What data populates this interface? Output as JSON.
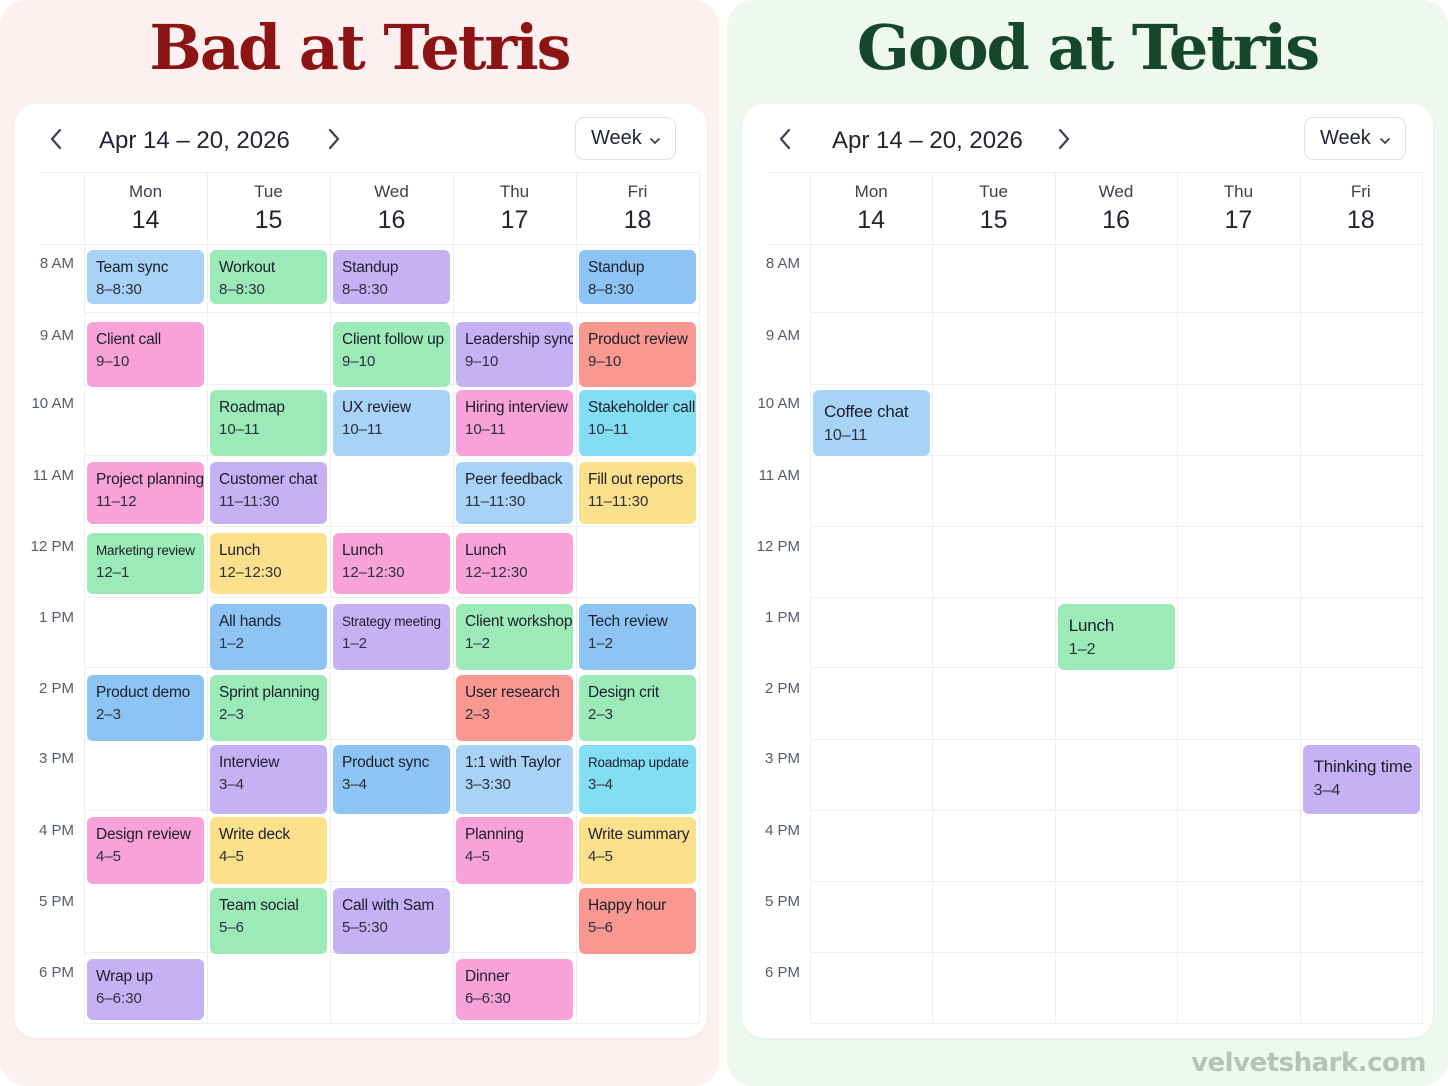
{
  "colors": {
    "blue": "#a9d3f6",
    "green": "#9ceab8",
    "purple": "#c7b1f5",
    "pink": "#f8a2d9",
    "red": "#f99791",
    "yellow": "#fce08b",
    "cyan": "#84def3",
    "sky": "#8dc4f3",
    "bad_title": "#8d1414",
    "good_title": "#16472a"
  },
  "time_labels": [
    "8 AM",
    "9 AM",
    "10 AM",
    "11 AM",
    "12 PM",
    "1 PM",
    "2 PM",
    "3 PM",
    "4 PM",
    "5 PM",
    "6 PM"
  ],
  "panels": {
    "bad": {
      "title": "Bad at Tetris",
      "date_range": "Apr 14 – 20, 2026",
      "view_label": "Week",
      "prev_icon": "chevron-left-icon",
      "next_icon": "chevron-right-icon",
      "days": [
        {
          "name": "Mon",
          "num": "14"
        },
        {
          "name": "Tue",
          "num": "15"
        },
        {
          "name": "Wed",
          "num": "16"
        },
        {
          "name": "Thu",
          "num": "17"
        },
        {
          "name": "Fri",
          "num": "18"
        }
      ],
      "events": [
        {
          "title": "Team sync",
          "time": "8–8:30",
          "day": 0,
          "slot": 0,
          "color": "blue"
        },
        {
          "title": "Workout",
          "time": "8–8:30",
          "day": 1,
          "slot": 0,
          "color": "green"
        },
        {
          "title": "Standup",
          "time": "8–8:30",
          "day": 2,
          "slot": 0,
          "color": "purple"
        },
        {
          "title": "Standup",
          "time": "8–8:30",
          "day": 4,
          "slot": 0,
          "color": "sky"
        },
        {
          "title": "Client call",
          "time": "9–10",
          "day": 0,
          "slot": 1,
          "color": "pink"
        },
        {
          "title": "Client follow up",
          "time": "9–10",
          "day": 2,
          "slot": 1,
          "color": "green"
        },
        {
          "title": "Leadership sync",
          "time": "9–10",
          "day": 3,
          "slot": 1,
          "color": "purple"
        },
        {
          "title": "Product review",
          "time": "9–10",
          "day": 4,
          "slot": 1,
          "color": "red"
        },
        {
          "title": "Roadmap",
          "time": "10–11",
          "day": 1,
          "slot": 2,
          "color": "green"
        },
        {
          "title": "UX review",
          "time": "10–11",
          "day": 2,
          "slot": 2,
          "color": "blue"
        },
        {
          "title": "Hiring interview",
          "time": "10–11",
          "day": 3,
          "slot": 2,
          "color": "pink"
        },
        {
          "title": "Stakeholder call",
          "time": "10–11",
          "day": 4,
          "slot": 2,
          "color": "cyan"
        },
        {
          "title": "Project planning",
          "time": "11–12",
          "day": 0,
          "slot": 3,
          "color": "pink"
        },
        {
          "title": "Customer chat",
          "time": "11–11:30",
          "day": 1,
          "slot": 3,
          "color": "purple"
        },
        {
          "title": "Peer feedback",
          "time": "11–11:30",
          "day": 3,
          "slot": 3,
          "color": "blue"
        },
        {
          "title": "Fill out reports",
          "time": "11–11:30",
          "day": 4,
          "slot": 3,
          "color": "yellow"
        },
        {
          "title": "Marketing review",
          "time": "12–1",
          "day": 0,
          "slot": 4,
          "color": "green",
          "small": true
        },
        {
          "title": "Lunch",
          "time": "12–12:30",
          "day": 1,
          "slot": 4,
          "color": "yellow"
        },
        {
          "title": "Lunch",
          "time": "12–12:30",
          "day": 2,
          "slot": 4,
          "color": "pink"
        },
        {
          "title": "Lunch",
          "time": "12–12:30",
          "day": 3,
          "slot": 4,
          "color": "pink"
        },
        {
          "title": "All hands",
          "time": "1–2",
          "day": 1,
          "slot": 5,
          "color": "sky"
        },
        {
          "title": "Strategy meeting",
          "time": "1–2",
          "day": 2,
          "slot": 5,
          "color": "purple",
          "small": true
        },
        {
          "title": "Client workshop",
          "time": "1–2",
          "day": 3,
          "slot": 5,
          "color": "green"
        },
        {
          "title": "Tech review",
          "time": "1–2",
          "day": 4,
          "slot": 5,
          "color": "sky"
        },
        {
          "title": "Product demo",
          "time": "2–3",
          "day": 0,
          "slot": 6,
          "color": "sky"
        },
        {
          "title": "Sprint planning",
          "time": "2–3",
          "day": 1,
          "slot": 6,
          "color": "green"
        },
        {
          "title": "User research",
          "time": "2–3",
          "day": 3,
          "slot": 6,
          "color": "red"
        },
        {
          "title": "Design crit",
          "time": "2–3",
          "day": 4,
          "slot": 6,
          "color": "green"
        },
        {
          "title": "Interview",
          "time": "3–4",
          "day": 1,
          "slot": 7,
          "color": "purple"
        },
        {
          "title": "Product sync",
          "time": "3–4",
          "day": 2,
          "slot": 7,
          "color": "sky"
        },
        {
          "title": "1:1 with Taylor",
          "time": "3–3:30",
          "day": 3,
          "slot": 7,
          "color": "blue"
        },
        {
          "title": "Roadmap update",
          "time": "3–4",
          "day": 4,
          "slot": 7,
          "color": "cyan",
          "small": true
        },
        {
          "title": "Design review",
          "time": "4–5",
          "day": 0,
          "slot": 8,
          "color": "pink"
        },
        {
          "title": "Write deck",
          "time": "4–5",
          "day": 1,
          "slot": 8,
          "color": "yellow"
        },
        {
          "title": "Planning",
          "time": "4–5",
          "day": 3,
          "slot": 8,
          "color": "pink"
        },
        {
          "title": "Write summary",
          "time": "4–5",
          "day": 4,
          "slot": 8,
          "color": "yellow"
        },
        {
          "title": "Team social",
          "time": "5–6",
          "day": 1,
          "slot": 9,
          "color": "green"
        },
        {
          "title": "Call with Sam",
          "time": "5–5:30",
          "day": 2,
          "slot": 9,
          "color": "purple"
        },
        {
          "title": "Happy hour",
          "time": "5–6",
          "day": 4,
          "slot": 9,
          "color": "red"
        },
        {
          "title": "Wrap up",
          "time": "6–6:30",
          "day": 0,
          "slot": 10,
          "color": "purple"
        },
        {
          "title": "Dinner",
          "time": "6–6:30",
          "day": 3,
          "slot": 10,
          "color": "pink"
        }
      ]
    },
    "good": {
      "title": "Good at Tetris",
      "date_range": "Apr 14 – 20, 2026",
      "view_label": "Week",
      "prev_icon": "chevron-left-icon",
      "next_icon": "chevron-right-icon",
      "days": [
        {
          "name": "Mon",
          "num": "14"
        },
        {
          "name": "Tue",
          "num": "15"
        },
        {
          "name": "Wed",
          "num": "16"
        },
        {
          "name": "Thu",
          "num": "17"
        },
        {
          "name": "Fri",
          "num": "18"
        }
      ],
      "events": [
        {
          "title": "Coffee chat",
          "time": "10–11",
          "day": 0,
          "slot": 2,
          "color": "blue"
        },
        {
          "title": "Lunch",
          "time": "1–2",
          "day": 2,
          "slot": 5,
          "color": "green"
        },
        {
          "title": "Thinking time",
          "time": "3–4",
          "day": 4,
          "slot": 7,
          "color": "purple"
        }
      ]
    }
  },
  "watermark": "velvetshark.com"
}
